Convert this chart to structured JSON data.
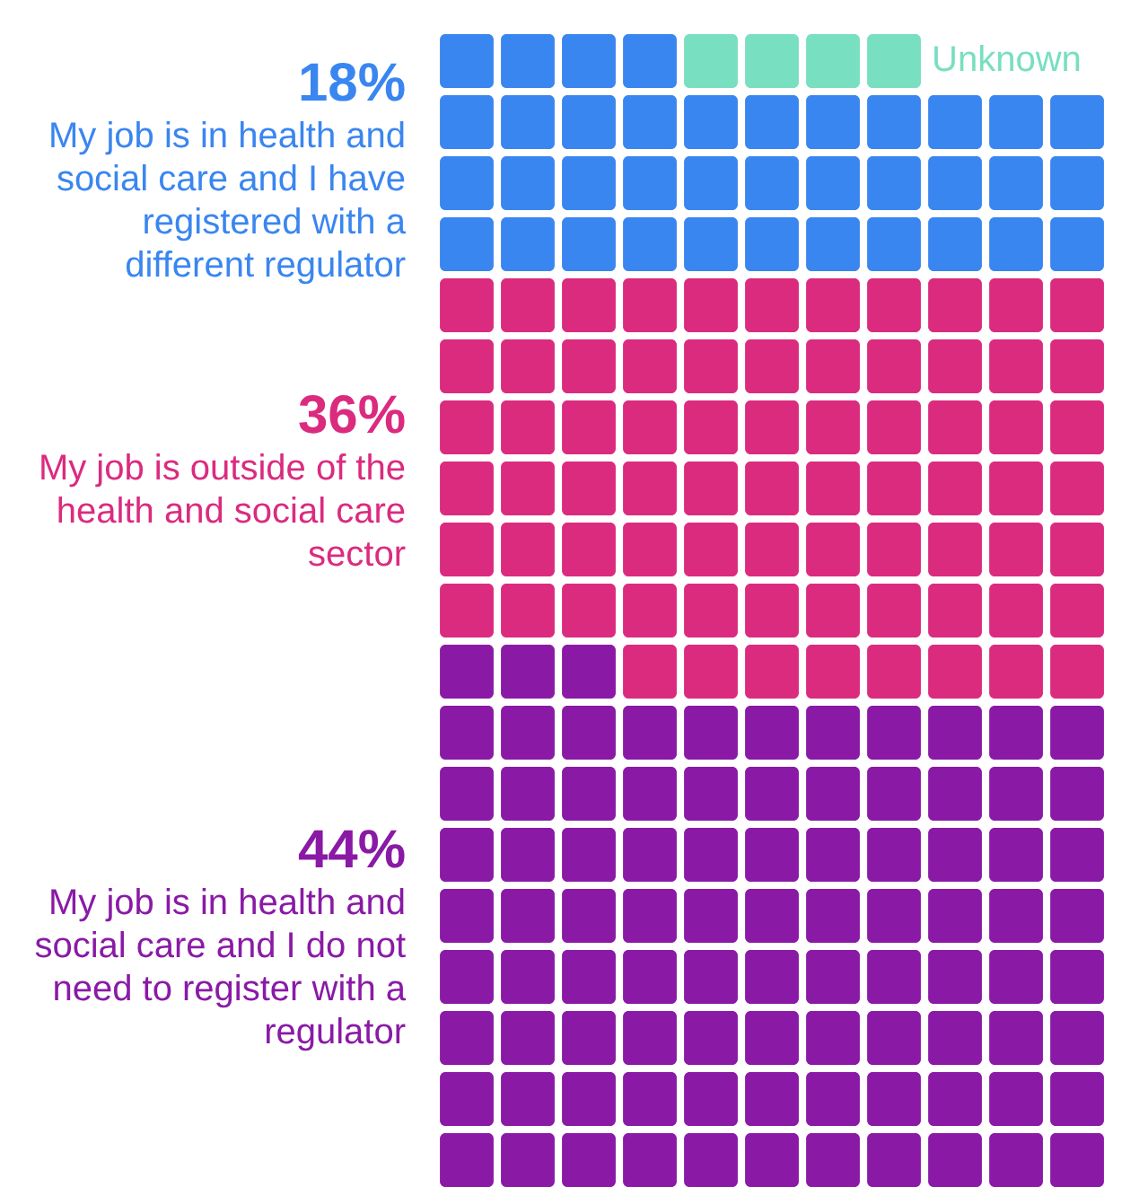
{
  "chart_data": {
    "type": "other",
    "categories": [
      "Unknown",
      "My job is in health and social care and I have registered with a different regulator",
      "My job is outside of the health and social care sector",
      "My job is in health and social care and I do not need to register with a regulator"
    ],
    "values": [
      null,
      18,
      36,
      44
    ],
    "value_labels": [
      null,
      "18%",
      "36%",
      "44%"
    ],
    "colors": [
      "#78dfc0",
      "#3a86f0",
      "#db2b7f",
      "#8a1aa6"
    ]
  }
}
